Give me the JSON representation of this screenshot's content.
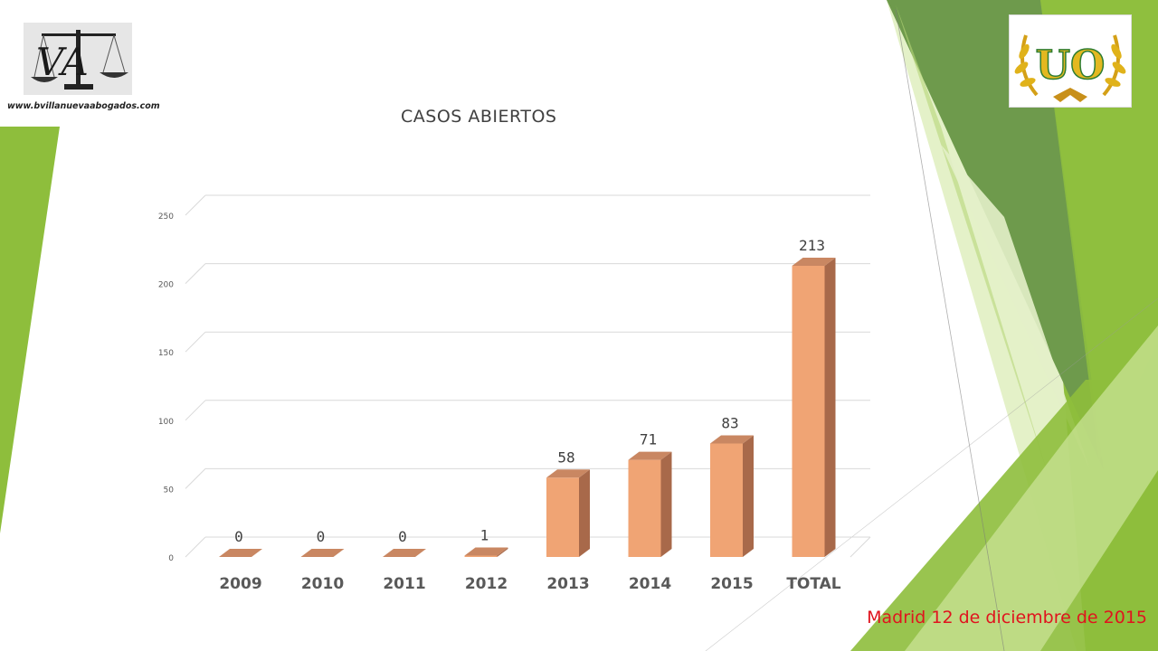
{
  "header": {
    "website": "www.bvillanuevaabogados.com",
    "left_logo_icon": "scales-of-justice-logo",
    "left_logo_letters": "VA",
    "right_logo_icon": "laurel-wreath-logo",
    "right_logo_letters": "UO"
  },
  "footer": {
    "date": "Madrid 12 de diciembre de 2015"
  },
  "colors": {
    "bar_front": "#f0a474",
    "bar_side": "#a8694a",
    "bar_top": "#c98762",
    "grid": "#d9d9d9",
    "green_dark": "#6e9a4c",
    "green_mid": "#8ebe3c",
    "green_light": "#cde69b",
    "date_text": "#e0141e"
  },
  "chart_data": {
    "type": "bar",
    "title": "CASOS ABIERTOS",
    "categories": [
      "2009",
      "2010",
      "2011",
      "2012",
      "2013",
      "2014",
      "2015",
      "TOTAL"
    ],
    "values": [
      0,
      0,
      0,
      1,
      58,
      71,
      83,
      213
    ],
    "data_labels": [
      "0",
      "0",
      "0",
      "1",
      "58",
      "71",
      "83",
      "213"
    ],
    "yticks": [
      "0",
      "50",
      "100",
      "150",
      "200",
      "250"
    ],
    "ylim": [
      0,
      250
    ],
    "grid": true,
    "legend": "none",
    "style": "3d-column"
  }
}
